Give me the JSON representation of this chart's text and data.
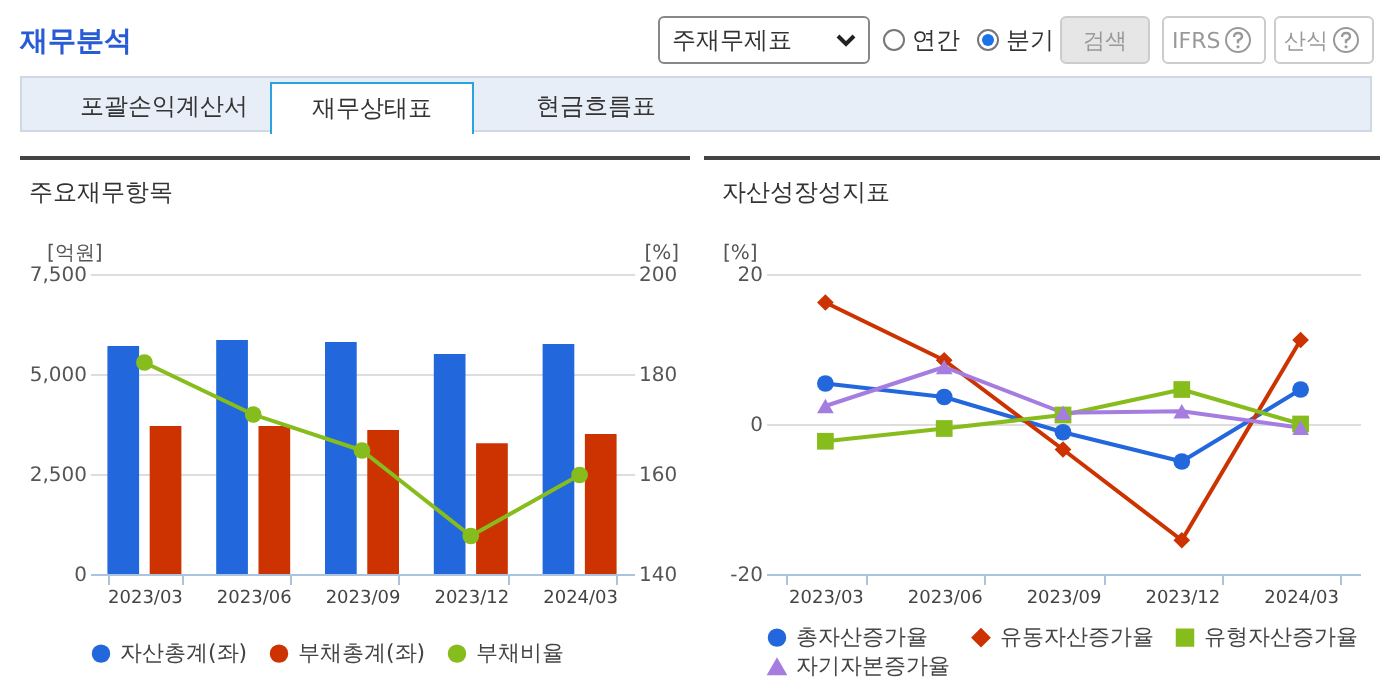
{
  "chart_data": [
    {
      "type": "other",
      "title": "재무분석",
      "annotations": [
        "주재무제표",
        "연간",
        "분기",
        "검색",
        "IFRS",
        "산식",
        "포괄손익계산서",
        "재무상태표",
        "현금흐름표"
      ]
    },
    {
      "type": "bar",
      "title": "주요재무항목",
      "categories": [
        "2023/03",
        "2023/06",
        "2023/09",
        "2023/12",
        "2024/03"
      ],
      "ylabel": "[억원]",
      "y2label": "[%]",
      "series": [
        {
          "name": "자산총계(좌)",
          "color": "#2267dc",
          "values": [
            5700,
            5850,
            5800,
            5500,
            5750
          ]
        },
        {
          "name": "부채총계(좌)",
          "color": "#cc3300",
          "values": [
            3700,
            3700,
            3600,
            3270,
            3500
          ]
        },
        {
          "name": "부채비율",
          "type": "line",
          "axis": "y2",
          "color": "#86bd1d",
          "marker": "circle",
          "values": [
            182.3,
            171.9,
            164.7,
            147.6,
            159.8
          ]
        }
      ],
      "ylim": [
        0,
        7500
      ],
      "yticks": [
        0,
        {
          "value": 2500,
          "label": "2,500"
        },
        {
          "value": 5000,
          "label": "5,000"
        },
        {
          "value": 7500,
          "label": "7,500"
        }
      ],
      "y2lim": [
        140,
        200
      ],
      "y2ticks": [
        140,
        160,
        180,
        200
      ],
      "grid": "y",
      "legend": "bottom"
    },
    {
      "type": "line",
      "title": "자산성장성지표",
      "categories": [
        "2023/03",
        "2023/06",
        "2023/09",
        "2023/12",
        "2024/03"
      ],
      "ylabel": "[%]",
      "series": [
        {
          "name": "총자산증가율",
          "color": "#2267dc",
          "marker": "circle",
          "values": [
            5.4,
            3.6,
            -1.1,
            -5.0,
            4.6
          ]
        },
        {
          "name": "유동자산증가율",
          "color": "#cc3300",
          "marker": "diamond",
          "values": [
            16.2,
            8.5,
            -3.4,
            -15.5,
            11.2
          ]
        },
        {
          "name": "유형자산증가율",
          "color": "#86bd1d",
          "marker": "square",
          "values": [
            -2.3,
            -0.6,
            1.2,
            4.6,
            0
          ]
        },
        {
          "name": "자기자본증가율",
          "color": "#a57de0",
          "marker": "triangle",
          "values": [
            2.4,
            7.6,
            1.5,
            1.7,
            -0.5
          ]
        }
      ],
      "ylim": [
        -20,
        20
      ],
      "yticks": [
        -20,
        0,
        20
      ],
      "grid": "y",
      "legend": "bottom"
    }
  ]
}
